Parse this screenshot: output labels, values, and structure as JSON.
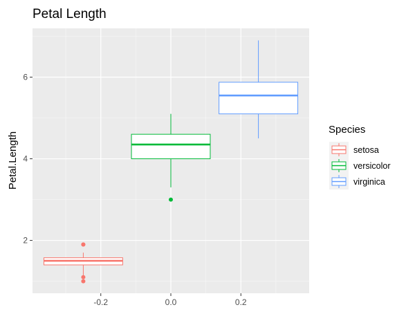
{
  "chart_data": {
    "type": "boxplot",
    "title": "Petal Length",
    "xlabel": "",
    "ylabel": "Petal.Length",
    "xlim": [
      -0.395,
      0.395
    ],
    "ylim": [
      0.705,
      7.195
    ],
    "x_ticks": [
      -0.2,
      0.0,
      0.2
    ],
    "x_tick_labels": [
      "-0.2",
      "0.0",
      "0.2"
    ],
    "y_ticks": [
      2,
      4,
      6
    ],
    "y_tick_labels": [
      "2",
      "4",
      "6"
    ],
    "grid": true,
    "legend": {
      "title": "Species",
      "position": "right"
    },
    "series": [
      {
        "name": "setosa",
        "color": "#F8766D",
        "x_range": [
          -0.3625,
          -0.1375
        ],
        "center": -0.25,
        "whisker_low": 1.1,
        "q1": 1.4,
        "median": 1.5,
        "q3": 1.575,
        "whisker_high": 1.7,
        "outliers": [
          1.0,
          1.1,
          1.9,
          1.9
        ]
      },
      {
        "name": "versicolor",
        "color": "#00BA38",
        "x_range": [
          -0.1125,
          0.1125
        ],
        "center": 0.0,
        "whisker_low": 3.3,
        "q1": 4.0,
        "median": 4.35,
        "q3": 4.6,
        "whisker_high": 5.1,
        "outliers": [
          3.0
        ]
      },
      {
        "name": "virginica",
        "color": "#619CFF",
        "x_range": [
          0.1375,
          0.3625
        ],
        "center": 0.25,
        "whisker_low": 4.5,
        "q1": 5.1,
        "median": 5.55,
        "q3": 5.875,
        "whisker_high": 6.9,
        "outliers": []
      }
    ]
  }
}
